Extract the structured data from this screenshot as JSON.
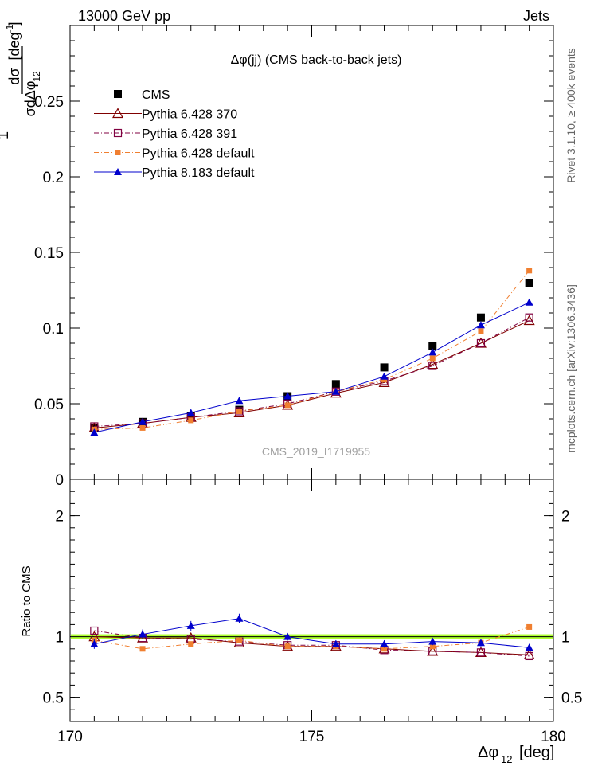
{
  "header": {
    "left": "13000 GeV pp",
    "right": "Jets"
  },
  "side_labels": {
    "top": "Rivet 3.1.10, ≥ 400k events",
    "bottom": "mcplots.cern.ch [arXiv:1306.3436]"
  },
  "watermark": "CMS_2019_I1719955",
  "chart_data": [
    {
      "type": "line",
      "title": "Δφ(jj) (CMS back-to-back jets)",
      "ylabel": "1/σ dσ/dΔφ_12 [deg^-1]",
      "ylim": [
        0,
        0.3
      ],
      "yticks": [
        0,
        0.05,
        0.1,
        0.15,
        0.2,
        0.25
      ],
      "ytick_labels": [
        "0",
        "0.05",
        "0.1",
        "0.15",
        "0.2",
        "0.25"
      ],
      "legend_position": "top-left",
      "x": [
        170.5,
        171.5,
        172.5,
        173.5,
        174.5,
        175.5,
        176.5,
        177.5,
        178.5,
        179.5
      ],
      "series": [
        {
          "name": "CMS",
          "color": "#000000",
          "marker": "filled-square",
          "values": [
            0.034,
            0.038,
            0.042,
            0.046,
            0.055,
            0.063,
            0.074,
            0.088,
            0.107,
            0.13
          ]
        },
        {
          "name": "Pythia 6.428 370",
          "color": "#800000",
          "marker": "open-triangle",
          "line": "solid",
          "values": [
            0.034,
            0.037,
            0.041,
            0.044,
            0.049,
            0.057,
            0.064,
            0.076,
            0.09,
            0.105
          ]
        },
        {
          "name": "Pythia 6.428 391",
          "color": "#800040",
          "marker": "open-square",
          "line": "dashdot",
          "values": [
            0.035,
            0.037,
            0.041,
            0.045,
            0.05,
            0.058,
            0.065,
            0.075,
            0.09,
            0.107
          ]
        },
        {
          "name": "Pythia 6.428 default",
          "color": "#f07f30",
          "marker": "small-filled-square",
          "line": "dashdot",
          "values": [
            0.033,
            0.034,
            0.039,
            0.045,
            0.049,
            0.058,
            0.066,
            0.08,
            0.098,
            0.138
          ]
        },
        {
          "name": "Pythia 8.183 default",
          "color": "#0000cc",
          "marker": "filled-triangle",
          "line": "solid",
          "values": [
            0.031,
            0.038,
            0.044,
            0.052,
            0.055,
            0.058,
            0.068,
            0.084,
            0.102,
            0.117
          ]
        }
      ]
    },
    {
      "type": "line",
      "ylabel": "Ratio to CMS",
      "xlabel": "Δφ_12 [deg]",
      "ylim": [
        0.3,
        2.3
      ],
      "yticks": [
        0.5,
        1,
        2
      ],
      "ytick_labels": [
        "0.5",
        "1",
        "2"
      ],
      "xlim": [
        170,
        180
      ],
      "xticks": [
        170,
        175,
        180
      ],
      "xtick_labels": [
        "170",
        "175",
        "180"
      ],
      "x": [
        170.5,
        171.5,
        172.5,
        173.5,
        174.5,
        175.5,
        176.5,
        177.5,
        178.5,
        179.5
      ],
      "band": {
        "center": 1.0,
        "halfwidth": 0.02,
        "color": "#adff2f"
      },
      "series": [
        {
          "name": "Pythia 6.428 370",
          "color": "#800000",
          "marker": "open-triangle",
          "values": [
            1.0,
            0.99,
            0.99,
            0.95,
            0.92,
            0.92,
            0.9,
            0.88,
            0.87,
            0.85
          ]
        },
        {
          "name": "Pythia 6.428 391",
          "color": "#800040",
          "marker": "open-square",
          "values": [
            1.05,
            0.99,
            0.98,
            0.96,
            0.93,
            0.93,
            0.89,
            0.88,
            0.87,
            0.84
          ]
        },
        {
          "name": "Pythia 6.428 default",
          "color": "#f07f30",
          "marker": "small-filled-square",
          "values": [
            0.97,
            0.9,
            0.94,
            0.97,
            0.92,
            0.92,
            0.9,
            0.92,
            0.95,
            1.08
          ]
        },
        {
          "name": "Pythia 8.183 default",
          "color": "#0000cc",
          "marker": "filled-triangle",
          "values": [
            0.94,
            1.02,
            1.09,
            1.15,
            1.0,
            0.94,
            0.94,
            0.96,
            0.95,
            0.91
          ],
          "errors": [
            0.04,
            0.04,
            0.04,
            0.04,
            0.03,
            0.03,
            0.03,
            0.03,
            0.03,
            0.03
          ]
        }
      ]
    }
  ]
}
